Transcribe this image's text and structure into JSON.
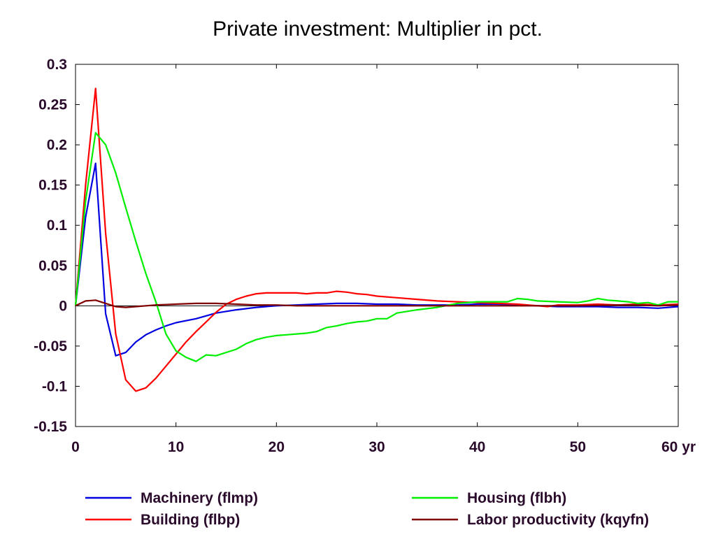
{
  "chart_data": {
    "type": "line",
    "title": "Private investment: Multiplier in pct.",
    "xlabel": "",
    "ylabel": "",
    "x_unit_label": "yr",
    "xlim": [
      0,
      60
    ],
    "ylim": [
      -0.15,
      0.3
    ],
    "x_ticks": [
      0,
      10,
      20,
      30,
      40,
      50,
      60
    ],
    "x_tick_labels": [
      "0",
      "10",
      "20",
      "30",
      "40",
      "50",
      "60 yr"
    ],
    "y_ticks": [
      0.3,
      0.25,
      0.2,
      0.15,
      0.1,
      0.05,
      0,
      -0.05,
      -0.1,
      -0.15
    ],
    "y_tick_labels": [
      "0.3",
      "0.25",
      "0.2",
      "0.15",
      "0.1",
      "0.05",
      "0",
      "-0.05",
      "-0.1",
      "-0.15"
    ],
    "grid": false,
    "legend_placement": "bottom",
    "series": [
      {
        "name": "Machinery (flmp)",
        "color": "#0000e0",
        "points": [
          [
            0,
            0
          ],
          [
            1,
            0.11
          ],
          [
            2,
            0.177
          ],
          [
            3,
            -0.01
          ],
          [
            4,
            -0.062
          ],
          [
            5,
            -0.058
          ],
          [
            6,
            -0.045
          ],
          [
            7,
            -0.036
          ],
          [
            8,
            -0.03
          ],
          [
            9,
            -0.025
          ],
          [
            10,
            -0.021
          ],
          [
            12,
            -0.016
          ],
          [
            14,
            -0.009
          ],
          [
            16,
            -0.005
          ],
          [
            18,
            -0.002
          ],
          [
            20,
            0
          ],
          [
            22,
            0.001
          ],
          [
            24,
            0.002
          ],
          [
            26,
            0.003
          ],
          [
            28,
            0.003
          ],
          [
            30,
            0.002
          ],
          [
            32,
            0.002
          ],
          [
            34,
            0.001
          ],
          [
            36,
            0.001
          ],
          [
            38,
            0.001
          ],
          [
            40,
            0.002
          ],
          [
            42,
            0.002
          ],
          [
            44,
            0.001
          ],
          [
            46,
            0
          ],
          [
            48,
            -0.001
          ],
          [
            50,
            -0.001
          ],
          [
            52,
            -0.001
          ],
          [
            54,
            -0.002
          ],
          [
            56,
            -0.002
          ],
          [
            58,
            -0.003
          ],
          [
            60,
            -0.001
          ]
        ]
      },
      {
        "name": "Building (flbp)",
        "color": "#ff0000",
        "points": [
          [
            0,
            0
          ],
          [
            1,
            0.15
          ],
          [
            2,
            0.27
          ],
          [
            3,
            0.09
          ],
          [
            4,
            -0.035
          ],
          [
            5,
            -0.092
          ],
          [
            6,
            -0.106
          ],
          [
            7,
            -0.102
          ],
          [
            8,
            -0.09
          ],
          [
            9,
            -0.075
          ],
          [
            10,
            -0.06
          ],
          [
            11,
            -0.045
          ],
          [
            12,
            -0.032
          ],
          [
            13,
            -0.02
          ],
          [
            14,
            -0.008
          ],
          [
            15,
            0.002
          ],
          [
            16,
            0.008
          ],
          [
            17,
            0.012
          ],
          [
            18,
            0.015
          ],
          [
            19,
            0.016
          ],
          [
            20,
            0.016
          ],
          [
            21,
            0.016
          ],
          [
            22,
            0.016
          ],
          [
            23,
            0.015
          ],
          [
            24,
            0.016
          ],
          [
            25,
            0.016
          ],
          [
            26,
            0.018
          ],
          [
            27,
            0.017
          ],
          [
            28,
            0.015
          ],
          [
            29,
            0.014
          ],
          [
            30,
            0.012
          ],
          [
            32,
            0.01
          ],
          [
            34,
            0.008
          ],
          [
            36,
            0.006
          ],
          [
            38,
            0.005
          ],
          [
            40,
            0.004
          ],
          [
            42,
            0.003
          ],
          [
            44,
            0.002
          ],
          [
            46,
            0
          ],
          [
            47,
            -0.001
          ],
          [
            48,
            0.001
          ],
          [
            50,
            0.001
          ],
          [
            52,
            0.002
          ],
          [
            54,
            0.001
          ],
          [
            56,
            0.002
          ],
          [
            58,
            0.001
          ],
          [
            60,
            0.002
          ]
        ]
      },
      {
        "name": "Housing (flbh)",
        "color": "#00ee00",
        "points": [
          [
            0,
            0
          ],
          [
            1,
            0.13
          ],
          [
            2,
            0.215
          ],
          [
            3,
            0.2
          ],
          [
            4,
            0.165
          ],
          [
            5,
            0.122
          ],
          [
            6,
            0.08
          ],
          [
            7,
            0.04
          ],
          [
            8,
            0.005
          ],
          [
            9,
            -0.035
          ],
          [
            10,
            -0.056
          ],
          [
            11,
            -0.064
          ],
          [
            12,
            -0.069
          ],
          [
            13,
            -0.061
          ],
          [
            14,
            -0.062
          ],
          [
            15,
            -0.058
          ],
          [
            16,
            -0.054
          ],
          [
            17,
            -0.047
          ],
          [
            18,
            -0.042
          ],
          [
            19,
            -0.039
          ],
          [
            20,
            -0.037
          ],
          [
            21,
            -0.036
          ],
          [
            22,
            -0.035
          ],
          [
            23,
            -0.034
          ],
          [
            24,
            -0.032
          ],
          [
            25,
            -0.027
          ],
          [
            26,
            -0.025
          ],
          [
            27,
            -0.022
          ],
          [
            28,
            -0.02
          ],
          [
            29,
            -0.019
          ],
          [
            30,
            -0.016
          ],
          [
            31,
            -0.016
          ],
          [
            32,
            -0.009
          ],
          [
            34,
            -0.005
          ],
          [
            36,
            -0.002
          ],
          [
            38,
            0.003
          ],
          [
            40,
            0.005
          ],
          [
            42,
            0.005
          ],
          [
            43,
            0.005
          ],
          [
            44,
            0.009
          ],
          [
            45,
            0.008
          ],
          [
            46,
            0.006
          ],
          [
            48,
            0.005
          ],
          [
            50,
            0.004
          ],
          [
            51,
            0.006
          ],
          [
            52,
            0.009
          ],
          [
            53,
            0.007
          ],
          [
            54,
            0.006
          ],
          [
            55,
            0.005
          ],
          [
            56,
            0.003
          ],
          [
            57,
            0.004
          ],
          [
            58,
            0.001
          ],
          [
            59,
            0.005
          ],
          [
            60,
            0.005
          ]
        ]
      },
      {
        "name": "Labor productivity (kqyfn)",
        "color": "#800000",
        "points": [
          [
            0,
            0
          ],
          [
            1,
            0.006
          ],
          [
            2,
            0.007
          ],
          [
            3,
            0.003
          ],
          [
            4,
            -0.001
          ],
          [
            5,
            -0.002
          ],
          [
            6,
            -0.001
          ],
          [
            8,
            0.001
          ],
          [
            10,
            0.002
          ],
          [
            12,
            0.003
          ],
          [
            14,
            0.003
          ],
          [
            16,
            0.002
          ],
          [
            18,
            0.001
          ],
          [
            20,
            0.001
          ],
          [
            22,
            0
          ],
          [
            26,
            0
          ],
          [
            30,
            0
          ],
          [
            34,
            0
          ],
          [
            38,
            0
          ],
          [
            42,
            0
          ],
          [
            46,
            0
          ],
          [
            50,
            0
          ],
          [
            54,
            0.001
          ],
          [
            56,
            0.001
          ],
          [
            58,
            0
          ],
          [
            60,
            0.001
          ]
        ]
      }
    ]
  }
}
